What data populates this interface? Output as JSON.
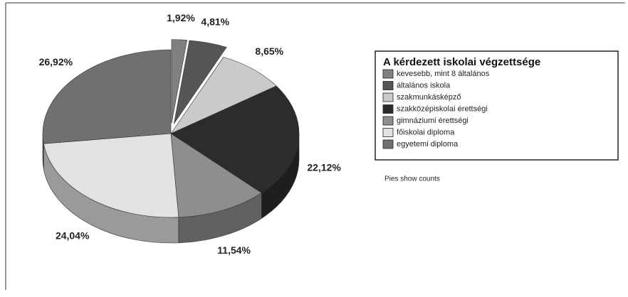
{
  "chart_data": {
    "type": "pie",
    "legend_title": "A kérdezett iskolai végzettsége",
    "note": "Pies show counts",
    "categories": [
      "kevesebb, mint 8 általános",
      "általános iskola",
      "szakmunkásképző",
      "szakközépiskolai érettségi",
      "gimnáziumi érettségi",
      "főiskolai diploma",
      "egyetemi diploma"
    ],
    "values": [
      1.92,
      4.81,
      8.65,
      22.12,
      11.54,
      24.04,
      26.92
    ],
    "value_labels": [
      "1,92%",
      "4,81%",
      "8,65%",
      "22,12%",
      "11,54%",
      "24,04%",
      "26,92%"
    ],
    "colors": [
      "#808080",
      "#565656",
      "#cacaca",
      "#2c2c2c",
      "#8e8e8e",
      "#e2e2e2",
      "#707070"
    ],
    "explode": [
      true,
      true,
      false,
      false,
      false,
      false,
      false
    ],
    "legend": "right"
  }
}
